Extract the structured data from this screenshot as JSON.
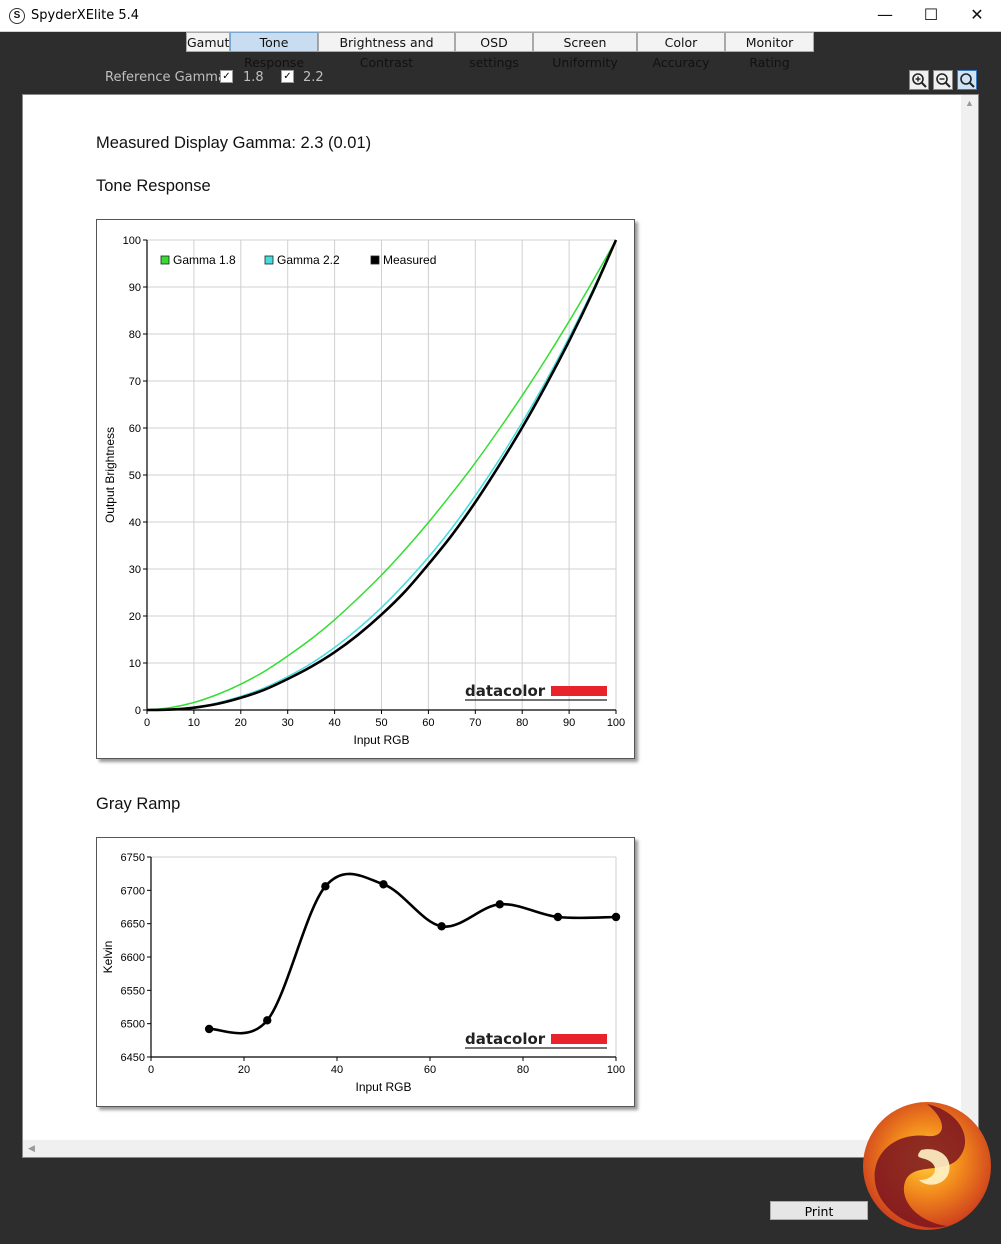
{
  "window": {
    "title": "SpyderXElite 5.4",
    "icon_letter": "S"
  },
  "tabs": [
    {
      "label": "Gamut",
      "active": false
    },
    {
      "label": "Tone Response",
      "active": true
    },
    {
      "label": "Brightness and Contrast",
      "active": false
    },
    {
      "label": "OSD settings",
      "active": false
    },
    {
      "label": "Screen Uniformity",
      "active": false
    },
    {
      "label": "Color Accuracy",
      "active": false
    },
    {
      "label": "Monitor Rating",
      "active": false
    }
  ],
  "reference_gamma": {
    "label": "Reference Gamma:",
    "options": [
      {
        "label": "1.8",
        "checked": true
      },
      {
        "label": "2.2",
        "checked": true
      }
    ]
  },
  "report": {
    "measured_gamma": "Measured Display Gamma: 2.3 (0.01)",
    "tone_heading": "Tone Response",
    "ramp_heading": "Gray Ramp"
  },
  "chart_data": [
    {
      "type": "line",
      "xlabel": "Input RGB",
      "ylabel": "Output Brightness",
      "xlim": [
        0,
        100
      ],
      "ylim": [
        0,
        100
      ],
      "xticks": [
        0,
        10,
        20,
        30,
        40,
        50,
        60,
        70,
        80,
        90,
        100
      ],
      "yticks": [
        0,
        10,
        20,
        30,
        40,
        50,
        60,
        70,
        80,
        90,
        100
      ],
      "grid": true,
      "legend_position": "top-left",
      "x": [
        0,
        5,
        10,
        15,
        20,
        25,
        30,
        35,
        40,
        45,
        50,
        55,
        60,
        65,
        70,
        75,
        80,
        85,
        90,
        95,
        100
      ],
      "series": [
        {
          "name": "Gamma 1.8",
          "color": "#33dd33",
          "values": [
            0,
            0.5,
            1.6,
            3.3,
            5.5,
            8.2,
            11.5,
            15.1,
            19.2,
            23.8,
            28.7,
            34.1,
            39.9,
            46.1,
            52.6,
            59.6,
            66.9,
            74.6,
            82.7,
            91.2,
            100
          ]
        },
        {
          "name": "Gamma 2.2",
          "color": "#44dddd",
          "values": [
            0,
            0.1,
            0.6,
            1.5,
            2.9,
            4.7,
            7.1,
            9.9,
            13.3,
            17.3,
            21.8,
            26.9,
            32.5,
            38.7,
            45.6,
            53.1,
            61.2,
            69.9,
            79.3,
            89.3,
            100
          ]
        },
        {
          "name": "Measured",
          "color": "#000000",
          "values": [
            0,
            0.1,
            0.5,
            1.3,
            2.6,
            4.3,
            6.6,
            9.2,
            12.3,
            16.0,
            20.3,
            25.2,
            31.0,
            37.2,
            44.2,
            51.9,
            60.1,
            69.0,
            78.5,
            88.8,
            100
          ]
        }
      ]
    },
    {
      "type": "line",
      "xlabel": "Input RGB",
      "ylabel": "Kelvin",
      "xlim": [
        0,
        100
      ],
      "ylim": [
        6450,
        6750
      ],
      "xticks": [
        0,
        20,
        40,
        60,
        80,
        100
      ],
      "yticks": [
        6450,
        6500,
        6550,
        6600,
        6650,
        6700,
        6750
      ],
      "grid": false,
      "series": [
        {
          "color": "#000000",
          "x": [
            12.5,
            25,
            37.5,
            50,
            62.5,
            75,
            87.5,
            100
          ],
          "values": [
            6492,
            6505,
            6706,
            6709,
            6646,
            6679,
            6660,
            6660
          ]
        }
      ]
    }
  ],
  "brand": "datacolor",
  "brand_color": "#e8232b",
  "buttons": {
    "print": "Print"
  }
}
